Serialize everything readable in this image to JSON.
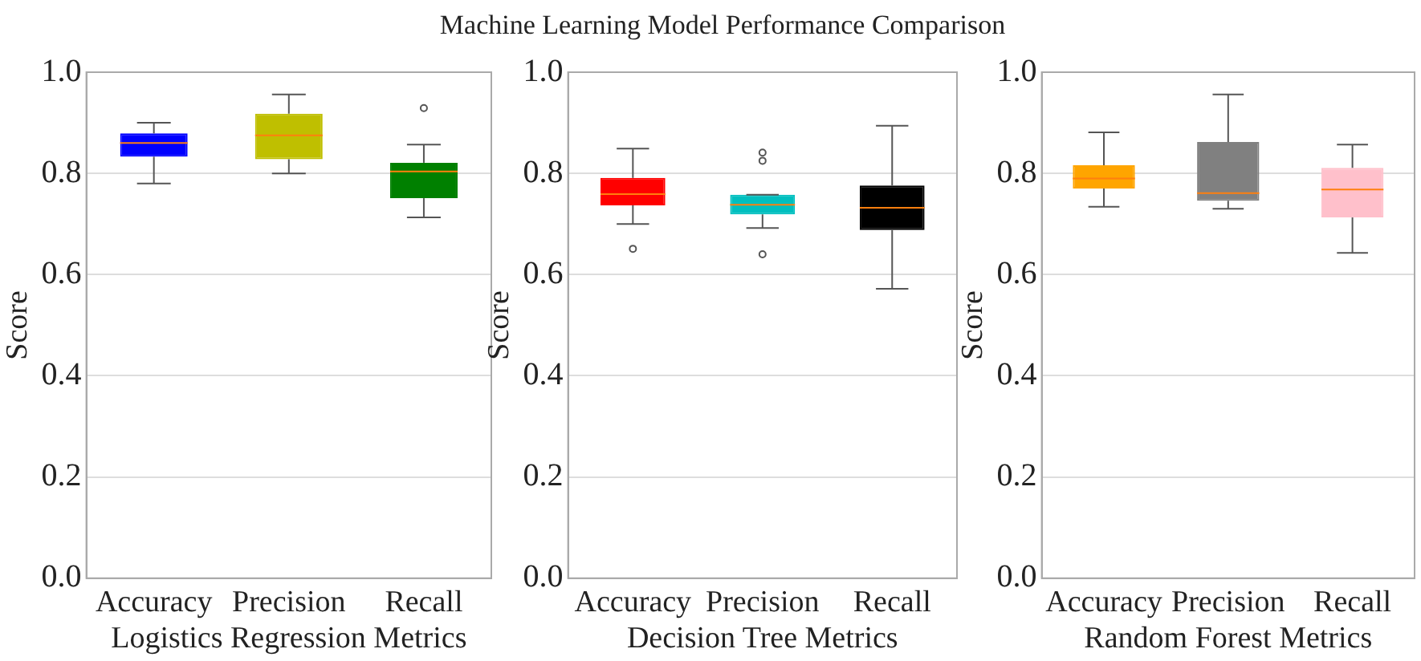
{
  "chart_data": [
    {
      "type": "box",
      "categories": [
        "Accuracy",
        "Precision",
        "Recall"
      ],
      "xlabel": "Logistics Regression Metrics",
      "ylabel": "Score",
      "ylim": [
        0,
        1
      ],
      "yticks": [
        {
          "value": 0,
          "label": "0.0"
        },
        {
          "value": 0.2,
          "label": "0.2"
        },
        {
          "value": 0.4,
          "label": "0.4"
        },
        {
          "value": 0.6,
          "label": "0.6"
        },
        {
          "value": 0.8,
          "label": "0.8"
        },
        {
          "value": 1,
          "label": "1.0"
        }
      ],
      "grid": "y",
      "colors": [
        "#0000ff",
        "#bfbf00",
        "#008000"
      ],
      "boxes": [
        {
          "low": 0.78,
          "q1": 0.833,
          "median": 0.86,
          "q3": 0.879,
          "high": 0.9
        },
        {
          "low": 0.8,
          "q1": 0.828,
          "median": 0.875,
          "q3": 0.918,
          "high": 0.956
        },
        {
          "low": 0.713,
          "q1": 0.751,
          "median": 0.804,
          "q3": 0.821,
          "high": 0.857,
          "outliers": [
            0.929
          ]
        }
      ]
    },
    {
      "type": "box",
      "title": "Machine Learning Model Performance Comparison",
      "categories": [
        "Accuracy",
        "Precision",
        "Recall"
      ],
      "xlabel": "Decision Tree Metrics",
      "ylabel": "Score",
      "ylim": [
        0,
        1
      ],
      "yticks": [
        {
          "value": 0,
          "label": "0.0"
        },
        {
          "value": 0.2,
          "label": "0.2"
        },
        {
          "value": 0.4,
          "label": "0.4"
        },
        {
          "value": 0.6,
          "label": "0.6"
        },
        {
          "value": 0.8,
          "label": "0.8"
        },
        {
          "value": 1,
          "label": "1.0"
        }
      ],
      "grid": "y",
      "colors": [
        "#ff0000",
        "#00bfbf",
        "#000000"
      ],
      "boxes": [
        {
          "low": 0.7,
          "q1": 0.737,
          "median": 0.759,
          "q3": 0.791,
          "high": 0.849,
          "outliers": [
            0.651
          ]
        },
        {
          "low": 0.692,
          "q1": 0.719,
          "median": 0.738,
          "q3": 0.758,
          "high": 0.758,
          "outliers": [
            0.841,
            0.825,
            0.64
          ]
        },
        {
          "low": 0.572,
          "q1": 0.688,
          "median": 0.732,
          "q3": 0.776,
          "high": 0.894
        }
      ]
    },
    {
      "type": "box",
      "categories": [
        "Accuracy",
        "Precision",
        "Recall"
      ],
      "xlabel": "Random Forest Metrics",
      "ylabel": "Score",
      "ylim": [
        0,
        1
      ],
      "yticks": [
        {
          "value": 0,
          "label": "0.0"
        },
        {
          "value": 0.2,
          "label": "0.2"
        },
        {
          "value": 0.4,
          "label": "0.4"
        },
        {
          "value": 0.6,
          "label": "0.6"
        },
        {
          "value": 0.8,
          "label": "0.8"
        },
        {
          "value": 1,
          "label": "1.0"
        }
      ],
      "grid": "y",
      "colors": [
        "#ffa500",
        "#808080",
        "#ffc0cb"
      ],
      "boxes": [
        {
          "low": 0.734,
          "q1": 0.77,
          "median": 0.79,
          "q3": 0.816,
          "high": 0.881
        },
        {
          "low": 0.73,
          "q1": 0.746,
          "median": 0.761,
          "q3": 0.862,
          "high": 0.956
        },
        {
          "low": 0.643,
          "q1": 0.713,
          "median": 0.768,
          "q3": 0.811,
          "high": 0.857
        }
      ]
    }
  ]
}
